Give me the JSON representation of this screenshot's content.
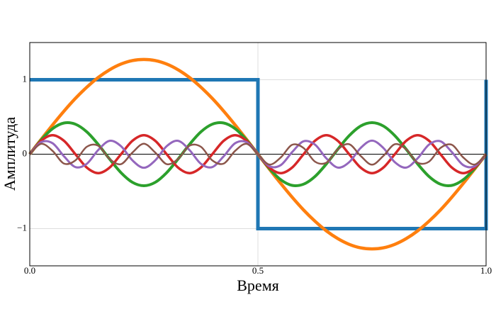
{
  "chart_data": {
    "type": "line",
    "xlabel": "Время",
    "ylabel": "Амплитуда",
    "xlim": [
      0,
      1
    ],
    "ylim": [
      -1.5,
      1.5
    ],
    "xticks": [
      {
        "value": 0,
        "label": "0.0"
      },
      0.5,
      {
        "value": 1,
        "label": "1.0"
      }
    ],
    "yticks": [
      {
        "value": -1,
        "label": "−1"
      },
      0,
      1
    ],
    "grid": true,
    "x": [
      0,
      0.025,
      0.05,
      0.075,
      0.1,
      0.125,
      0.15,
      0.175,
      0.2,
      0.225,
      0.25,
      0.275,
      0.3,
      0.325,
      0.35,
      0.375,
      0.4,
      0.425,
      0.45,
      0.475,
      0.5,
      0.525,
      0.55,
      0.575,
      0.6,
      0.625,
      0.65,
      0.675,
      0.7,
      0.725,
      0.75,
      0.775,
      0.8,
      0.825,
      0.85,
      0.875,
      0.9,
      0.925,
      0.95,
      0.975,
      1
    ],
    "series": [
      {
        "color": "#1f77b4",
        "x": [
          0,
          0.5,
          0.5,
          1,
          1
        ],
        "values": [
          1,
          1,
          -1,
          -1,
          1
        ]
      },
      {
        "color": "#ff7f0e",
        "values": [
          0,
          0.199,
          0.393,
          0.578,
          0.749,
          0.9,
          1.03,
          1.134,
          1.211,
          1.258,
          1.273,
          1.258,
          1.211,
          1.134,
          1.03,
          0.9,
          0.749,
          0.578,
          0.393,
          0.199,
          0,
          -0.199,
          -0.393,
          -0.578,
          -0.749,
          -0.9,
          -1.03,
          -1.134,
          -1.211,
          -1.258,
          -1.273,
          -1.258,
          -1.211,
          -1.134,
          -1.03,
          -0.9,
          -0.749,
          -0.578,
          -0.393,
          -0.199,
          0
        ]
      },
      {
        "color": "#2ca02c",
        "values": [
          0,
          0.192,
          0.343,
          0.419,
          0.403,
          0.3,
          0.131,
          -0.066,
          -0.249,
          -0.378,
          -0.424,
          -0.378,
          -0.249,
          -0.066,
          0.131,
          0.3,
          0.403,
          0.419,
          0.343,
          0.192,
          0,
          -0.192,
          -0.343,
          -0.419,
          -0.403,
          -0.3,
          -0.131,
          0.066,
          0.249,
          0.378,
          0.424,
          0.378,
          0.249,
          0.066,
          -0.131,
          -0.3,
          -0.403,
          -0.419,
          -0.343,
          -0.192,
          0
        ]
      },
      {
        "color": "#d62728",
        "values": [
          0,
          0.18,
          0.255,
          0.18,
          0,
          -0.18,
          -0.255,
          -0.18,
          0,
          0.18,
          0.255,
          0.18,
          0,
          -0.18,
          -0.255,
          -0.18,
          0,
          0.18,
          0.255,
          0.18,
          0,
          -0.18,
          -0.255,
          -0.18,
          0,
          0.18,
          0.255,
          0.18,
          0,
          -0.18,
          -0.255,
          -0.18,
          0,
          0.18,
          0.255,
          0.18,
          0,
          -0.18,
          -0.255,
          -0.18,
          0
        ]
      },
      {
        "color": "#9467bd",
        "values": [
          0,
          0.162,
          0.147,
          -0.028,
          -0.173,
          -0.129,
          0.056,
          0.18,
          0.107,
          -0.083,
          -0.182,
          -0.083,
          0.107,
          0.18,
          0.056,
          -0.129,
          -0.173,
          -0.028,
          0.147,
          0.162,
          0,
          -0.162,
          -0.147,
          0.028,
          0.173,
          0.129,
          -0.056,
          -0.18,
          -0.107,
          0.083,
          0.182,
          0.083,
          -0.107,
          -0.18,
          -0.056,
          0.129,
          0.173,
          0.028,
          -0.147,
          -0.162,
          0
        ]
      },
      {
        "color": "#8c564b",
        "values": [
          0,
          0.139,
          0.044,
          -0.126,
          -0.083,
          0.1,
          0.114,
          -0.064,
          -0.134,
          0.022,
          0.141,
          0.022,
          -0.134,
          -0.064,
          0.114,
          0.1,
          -0.083,
          -0.126,
          0.044,
          0.139,
          0,
          -0.139,
          -0.044,
          0.126,
          0.083,
          -0.1,
          -0.114,
          0.064,
          0.134,
          -0.022,
          -0.141,
          -0.022,
          0.134,
          0.064,
          -0.114,
          -0.1,
          0.083,
          0.126,
          -0.044,
          -0.139,
          0
        ]
      }
    ]
  }
}
